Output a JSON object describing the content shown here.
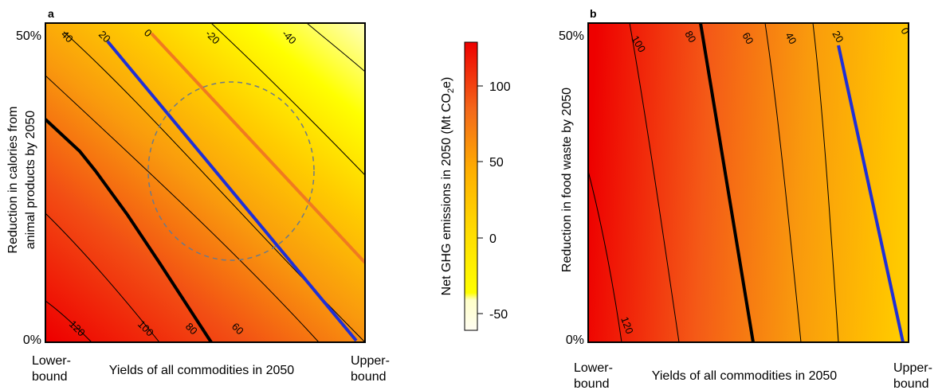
{
  "chart_data": [
    {
      "type": "heatmap",
      "panel": "a",
      "ylabel_lines": [
        "Reduction in calories from",
        "animal products by 2050"
      ],
      "xlabel": "Yields of all commodities in 2050",
      "x_ticks": [
        "Lower-",
        "bound",
        "Upper-",
        "bound"
      ],
      "y_ticks": [
        "50%",
        "0%"
      ],
      "contour_levels": [
        120,
        100,
        80,
        60,
        40,
        20,
        0,
        -20,
        -40
      ],
      "contour_labels": [
        "40",
        "20",
        "0",
        "-20",
        "-40",
        "120",
        "100",
        "80",
        "60"
      ],
      "highlighted_contours": [
        {
          "level": 80,
          "color": "#000000"
        },
        {
          "level": 20,
          "color": "#1f2fd6"
        },
        {
          "level": 0,
          "color": "#f07a20"
        }
      ],
      "ellipse": "dashed"
    },
    {
      "type": "heatmap",
      "panel": "b",
      "ylabel": "Reduction in food waste by 2050",
      "xlabel": "Yields of all commodities in 2050",
      "x_ticks": [
        "Lower-",
        "bound",
        "Upper-",
        "bound"
      ],
      "y_ticks": [
        "50%",
        "0%"
      ],
      "contour_levels": [
        120,
        100,
        80,
        60,
        40,
        20,
        0
      ],
      "contour_labels": [
        "100",
        "80",
        "60",
        "40",
        "20",
        "0",
        "120"
      ],
      "highlighted_contours": [
        {
          "level": 80,
          "color": "#000000"
        },
        {
          "level": 20,
          "color": "#1f2fd6"
        }
      ]
    }
  ],
  "colorbar": {
    "label": "Net GHG emissions in 2050 (Mt CO",
    "label_sub": "2",
    "label_end": "e)",
    "min": -65,
    "max": 125,
    "ticks": [
      "100",
      "50",
      "0",
      "-50"
    ],
    "stops": [
      {
        "v": -65,
        "c": "#fffdf2"
      },
      {
        "v": -45,
        "c": "#ffffc8"
      },
      {
        "v": -40,
        "c": "#ffff00"
      },
      {
        "v": 0,
        "c": "#ffdc00"
      },
      {
        "v": 40,
        "c": "#ffb000"
      },
      {
        "v": 80,
        "c": "#f46a1a"
      },
      {
        "v": 125,
        "c": "#ee0000"
      }
    ]
  },
  "panel_letters": [
    "a",
    "b"
  ]
}
